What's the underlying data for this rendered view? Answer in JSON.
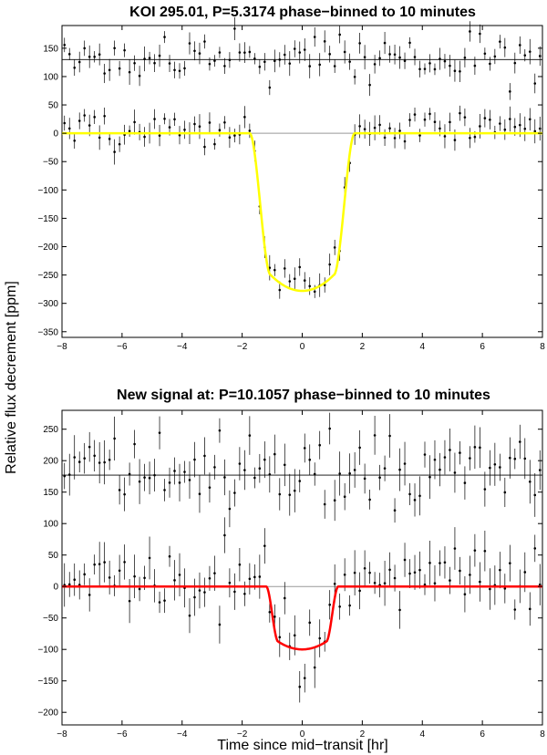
{
  "figure": {
    "ylabel": "Relative flux decrement [ppm]",
    "xlabel": "Time since mid−transit [hr]"
  },
  "chart_data": [
    {
      "type": "scatter",
      "title": "KOI 295.01, P=5.3174 phase−binned to 10 minutes",
      "xlim": [
        -8,
        8
      ],
      "ylim": [
        -360,
        190
      ],
      "xticks": [
        -8,
        -6,
        -4,
        -2,
        0,
        2,
        4,
        6,
        8
      ],
      "yticks": [
        -350,
        -300,
        -250,
        -200,
        -150,
        -100,
        -50,
        0,
        50,
        100,
        150
      ],
      "offset_level": 130,
      "fit_color": "#ffff00",
      "model": {
        "depth": 278,
        "t_total": 1.75,
        "t_flat": 1.05
      },
      "seed": 11,
      "upper_noise": 20,
      "lower_noise": 17,
      "err_mean": 16,
      "n_bins": 96
    },
    {
      "type": "scatter",
      "title": "New signal at: P=10.1057 phase−binned to 10 minutes",
      "xlim": [
        -8,
        8
      ],
      "ylim": [
        -220,
        280
      ],
      "xticks": [
        -8,
        -6,
        -4,
        -2,
        0,
        2,
        4,
        6,
        8
      ],
      "yticks": [
        -200,
        -150,
        -100,
        -50,
        0,
        50,
        100,
        150,
        200,
        250
      ],
      "offset_level": 177,
      "fit_color": "#ff0000",
      "model": {
        "depth": 100,
        "t_total": 1.2,
        "t_flat": 0.8
      },
      "seed": 29,
      "upper_noise": 30,
      "lower_noise": 27,
      "err_mean": 26,
      "n_bins": 96
    }
  ]
}
